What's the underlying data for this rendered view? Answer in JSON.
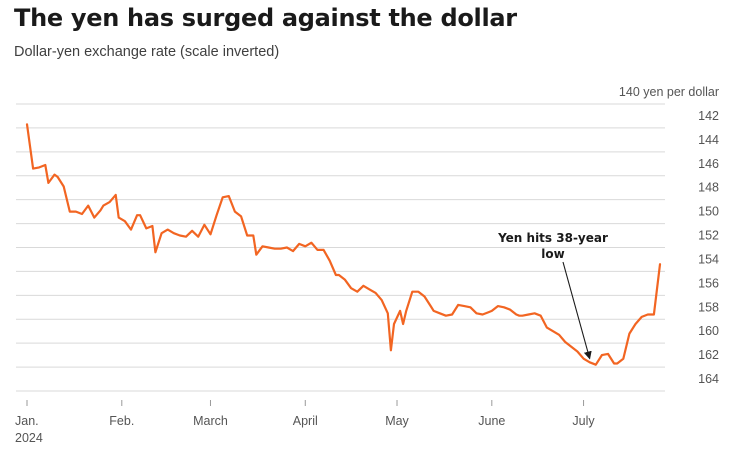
{
  "chart_data": {
    "type": "line",
    "title": "The yen has surged against the dollar",
    "subtitle": "Dollar-yen exchange rate (scale inverted)",
    "ylabel": "yen per dollar",
    "y_inverted": true,
    "ylim": [
      140,
      164
    ],
    "y_ticks": [
      140,
      142,
      144,
      146,
      148,
      150,
      152,
      154,
      156,
      158,
      160,
      162,
      164
    ],
    "y_tick_labels": [
      "140 yen per dollar",
      "142",
      "144",
      "146",
      "148",
      "150",
      "152",
      "154",
      "156",
      "158",
      "160",
      "162",
      "164"
    ],
    "x_ticks": [
      {
        "date": "2024-01-01",
        "label": "Jan.",
        "sublabel": "2024"
      },
      {
        "date": "2024-02-01",
        "label": "Feb."
      },
      {
        "date": "2024-03-01",
        "label": "March"
      },
      {
        "date": "2024-04-01",
        "label": "April"
      },
      {
        "date": "2024-05-01",
        "label": "May"
      },
      {
        "date": "2024-06-01",
        "label": "June"
      },
      {
        "date": "2024-07-01",
        "label": "July"
      }
    ],
    "xlim": [
      "2024-01-01",
      "2024-07-26"
    ],
    "grid": true,
    "line_color": "#f26522",
    "annotation": {
      "text": [
        "Yen hits 38-year",
        "low"
      ],
      "date": "2024-07-03",
      "value": 161.7
    },
    "series": [
      {
        "x": [
          "2024-01-01",
          "2024-01-03",
          "2024-01-05",
          "2024-01-07",
          "2024-01-08",
          "2024-01-10",
          "2024-01-11",
          "2024-01-13",
          "2024-01-15",
          "2024-01-17",
          "2024-01-19",
          "2024-01-21",
          "2024-01-23",
          "2024-01-25",
          "2024-01-26",
          "2024-01-28",
          "2024-01-30",
          "2024-01-31",
          "2024-02-02",
          "2024-02-04",
          "2024-02-06",
          "2024-02-07",
          "2024-02-09",
          "2024-02-11",
          "2024-02-12",
          "2024-02-14",
          "2024-02-16",
          "2024-02-18",
          "2024-02-20",
          "2024-02-22",
          "2024-02-24",
          "2024-02-26",
          "2024-02-28",
          "2024-03-01",
          "2024-03-03",
          "2024-03-05",
          "2024-03-07",
          "2024-03-09",
          "2024-03-11",
          "2024-03-13",
          "2024-03-15",
          "2024-03-16",
          "2024-03-18",
          "2024-03-20",
          "2024-03-22",
          "2024-03-24",
          "2024-03-26",
          "2024-03-28",
          "2024-03-30",
          "2024-04-01",
          "2024-04-03",
          "2024-04-05",
          "2024-04-07",
          "2024-04-09",
          "2024-04-11",
          "2024-04-12",
          "2024-04-14",
          "2024-04-16",
          "2024-04-18",
          "2024-04-20",
          "2024-04-22",
          "2024-04-24",
          "2024-04-26",
          "2024-04-28",
          "2024-04-29",
          "2024-04-30",
          "2024-05-02",
          "2024-05-03",
          "2024-05-04",
          "2024-05-06",
          "2024-05-08",
          "2024-05-10",
          "2024-05-12",
          "2024-05-13",
          "2024-05-15",
          "2024-05-17",
          "2024-05-19",
          "2024-05-21",
          "2024-05-23",
          "2024-05-25",
          "2024-05-27",
          "2024-05-29",
          "2024-05-31",
          "2024-06-01",
          "2024-06-03",
          "2024-06-05",
          "2024-06-07",
          "2024-06-09",
          "2024-06-10",
          "2024-06-11",
          "2024-06-13",
          "2024-06-15",
          "2024-06-17",
          "2024-06-19",
          "2024-06-21",
          "2024-06-23",
          "2024-06-25",
          "2024-06-27",
          "2024-06-29",
          "2024-07-01",
          "2024-07-03",
          "2024-07-05",
          "2024-07-07",
          "2024-07-09",
          "2024-07-11",
          "2024-07-12",
          "2024-07-14",
          "2024-07-16",
          "2024-07-18",
          "2024-07-20",
          "2024-07-22",
          "2024-07-24",
          "2024-07-26"
        ],
        "values": [
          141.7,
          145.4,
          145.3,
          145.1,
          146.6,
          145.9,
          146.1,
          146.9,
          149.0,
          149.0,
          149.2,
          148.5,
          149.5,
          148.9,
          148.5,
          148.2,
          147.6,
          149.5,
          149.8,
          150.5,
          149.3,
          149.3,
          150.4,
          150.2,
          152.4,
          150.8,
          150.5,
          150.8,
          151.0,
          151.1,
          150.6,
          151.1,
          150.1,
          150.9,
          149.3,
          147.8,
          147.7,
          149.0,
          149.4,
          151.0,
          151.0,
          152.6,
          151.9,
          152.0,
          152.1,
          152.1,
          152.0,
          152.3,
          151.7,
          151.9,
          151.6,
          152.2,
          152.2,
          153.1,
          154.3,
          154.3,
          154.7,
          155.4,
          155.7,
          155.2,
          155.5,
          155.8,
          156.4,
          157.5,
          160.6,
          158.4,
          157.3,
          158.4,
          157.3,
          155.7,
          155.7,
          156.1,
          156.9,
          157.3,
          157.5,
          157.7,
          157.6,
          156.8,
          156.9,
          157.0,
          157.5,
          157.6,
          157.4,
          157.3,
          156.9,
          157.0,
          157.2,
          157.6,
          157.7,
          157.7,
          157.6,
          157.5,
          157.7,
          158.7,
          159.0,
          159.3,
          159.9,
          160.3,
          160.7,
          161.3,
          161.6,
          161.8,
          161.0,
          160.9,
          161.7,
          161.7,
          161.3,
          159.2,
          158.4,
          157.8,
          157.6,
          157.6,
          153.4
        ]
      }
    ]
  }
}
